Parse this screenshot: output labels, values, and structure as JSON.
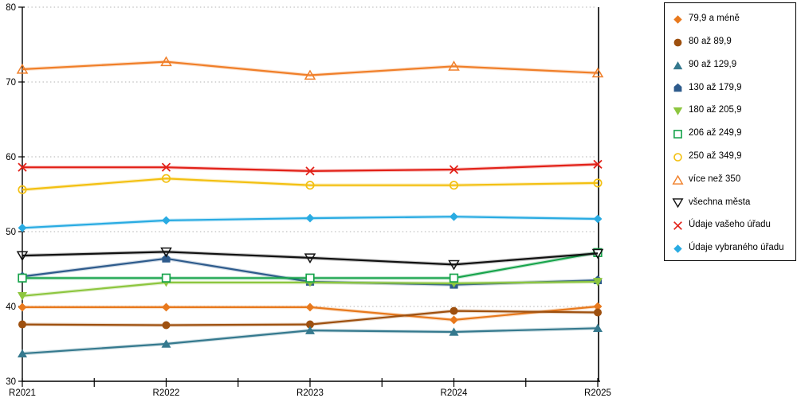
{
  "chart_data": {
    "type": "line",
    "title": "",
    "xlabel": "",
    "ylabel": "",
    "categories": [
      "R2021",
      "R2022",
      "R2023",
      "R2024",
      "R2025"
    ],
    "ylim": [
      30,
      80
    ],
    "ytick_step": 10,
    "grid": "horizontal-dotted",
    "legend_position": "right",
    "series": [
      {
        "name": "79,9 a méně",
        "marker": "diamond-filled",
        "color": "#E8791D",
        "values": [
          39.9,
          39.9,
          39.9,
          38.2,
          40.0
        ]
      },
      {
        "name": "80 až 89,9",
        "marker": "circle-filled",
        "color": "#9E500F",
        "values": [
          37.6,
          37.5,
          37.6,
          39.4,
          39.2
        ]
      },
      {
        "name": "90 až 129,9",
        "marker": "triangle-up-filled",
        "color": "#35798E",
        "values": [
          33.7,
          35.0,
          36.8,
          36.6,
          37.1
        ]
      },
      {
        "name": "130 až 179,9",
        "marker": "pentagon-filled",
        "color": "#2E5B8C",
        "values": [
          44.0,
          46.4,
          43.3,
          42.9,
          43.5
        ]
      },
      {
        "name": "180 až 205,9",
        "marker": "triangle-down-filled",
        "color": "#8DC63F",
        "values": [
          41.4,
          43.2,
          43.2,
          43.1,
          43.3
        ]
      },
      {
        "name": "206 až 249,9",
        "marker": "square-open",
        "color": "#18A44C",
        "values": [
          43.8,
          43.8,
          43.8,
          43.8,
          47.2
        ]
      },
      {
        "name": "250 až 349,9",
        "marker": "circle-open",
        "color": "#F3C011",
        "values": [
          55.6,
          57.1,
          56.2,
          56.2,
          56.5
        ]
      },
      {
        "name": "více než 350",
        "marker": "triangle-up-open",
        "color": "#F07F29",
        "values": [
          71.7,
          72.7,
          70.9,
          72.1,
          71.2
        ]
      },
      {
        "name": "všechna města",
        "marker": "triangle-down-open",
        "color": "#111111",
        "values": [
          46.8,
          47.3,
          46.5,
          45.6,
          47.1
        ]
      },
      {
        "name": "Údaje vašeho úřadu",
        "marker": "x-cross",
        "color": "#E22118",
        "values": [
          58.6,
          58.6,
          58.1,
          58.3,
          59.0
        ]
      },
      {
        "name": "Údaje vybraného úřadu",
        "marker": "diamond-filled",
        "color": "#29ABE2",
        "values": [
          50.5,
          51.5,
          51.8,
          52.0,
          51.7
        ]
      }
    ]
  }
}
